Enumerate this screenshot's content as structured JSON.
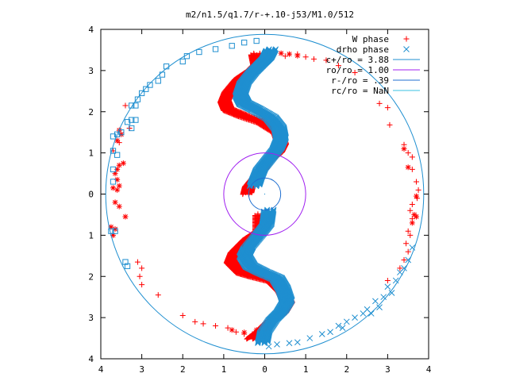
{
  "chart_data": {
    "type": "scatter",
    "title": "m2/n1.5/q1.7/r-+.10-j53/M1.0/512",
    "xlim": [
      -4,
      4
    ],
    "ylim": [
      -4,
      4
    ],
    "grid": false,
    "legend_position": "top-right",
    "x_tick_values": [
      -4,
      -3,
      -2,
      -1,
      0,
      1,
      2,
      3,
      4
    ],
    "x_tick_labels": [
      "4",
      "3",
      "2",
      "1",
      "0",
      "1",
      "2",
      "3",
      "4"
    ],
    "y_tick_values": [
      4,
      3,
      2,
      1,
      0,
      -1,
      -2,
      -3,
      -4
    ],
    "y_tick_labels": [
      "4",
      "3",
      "2",
      "1",
      "0",
      "1",
      "2",
      "3",
      "4"
    ],
    "series": [
      {
        "name": "W phase",
        "kind": "points",
        "marker": "plus",
        "color": "#ff0000",
        "points": [
          [
            0.2,
            3.48
          ],
          [
            0.5,
            3.35
          ],
          [
            0.8,
            3.4
          ],
          [
            1.0,
            3.33
          ],
          [
            1.2,
            3.28
          ],
          [
            1.5,
            3.25
          ],
          [
            1.8,
            3.12
          ],
          [
            2.2,
            2.95
          ],
          [
            2.8,
            2.2
          ],
          [
            3.0,
            2.1
          ],
          [
            3.05,
            1.68
          ],
          [
            3.4,
            1.2
          ],
          [
            3.5,
            1.0
          ],
          [
            3.6,
            0.9
          ],
          [
            3.6,
            0.6
          ],
          [
            3.7,
            0.3
          ],
          [
            3.75,
            0.1
          ],
          [
            3.72,
            -0.1
          ],
          [
            3.6,
            -0.25
          ],
          [
            3.55,
            -0.4
          ],
          [
            3.6,
            -0.6
          ],
          [
            3.5,
            -0.9
          ],
          [
            3.55,
            -1.0
          ],
          [
            3.45,
            -1.2
          ],
          [
            3.5,
            -1.4
          ],
          [
            3.4,
            -1.6
          ],
          [
            3.3,
            -1.8
          ],
          [
            3.0,
            -2.1
          ],
          [
            -3.1,
            -1.65
          ],
          [
            -3.0,
            -1.8
          ],
          [
            -3.05,
            -2.0
          ],
          [
            -3.0,
            -2.2
          ],
          [
            -2.6,
            -2.45
          ],
          [
            -2.0,
            -2.95
          ],
          [
            -1.7,
            -3.1
          ],
          [
            -1.5,
            -3.15
          ],
          [
            -1.2,
            -3.2
          ],
          [
            -0.9,
            -3.25
          ],
          [
            -0.7,
            -3.35
          ],
          [
            -0.5,
            -3.4
          ],
          [
            -0.3,
            -3.4
          ],
          [
            -3.4,
            2.15
          ],
          [
            -3.3,
            1.6
          ],
          [
            -3.55,
            1.25
          ],
          [
            -3.7,
            1.05
          ]
        ]
      },
      {
        "name": "",
        "kind": "points",
        "marker": "star",
        "color": "#ff0000",
        "points": [
          [
            -3.55,
            1.55
          ],
          [
            -3.5,
            1.45
          ],
          [
            -3.6,
            1.3
          ],
          [
            -3.45,
            0.75
          ],
          [
            -3.55,
            0.7
          ],
          [
            -3.6,
            0.6
          ],
          [
            -3.65,
            0.5
          ],
          [
            -3.6,
            0.35
          ],
          [
            -3.55,
            0.2
          ],
          [
            -3.7,
            0.15
          ],
          [
            -3.6,
            0.1
          ],
          [
            -3.65,
            -0.2
          ],
          [
            -3.55,
            -0.3
          ],
          [
            -3.75,
            -0.8
          ],
          [
            -3.65,
            -0.85
          ],
          [
            -3.7,
            -1.0
          ],
          [
            -3.4,
            -0.55
          ],
          [
            3.65,
            -0.5
          ],
          [
            3.7,
            -0.55
          ],
          [
            3.6,
            -0.7
          ],
          [
            3.7,
            -0.05
          ],
          [
            3.4,
            1.1
          ],
          [
            3.5,
            0.65
          ],
          [
            0.4,
            3.42
          ],
          [
            0.6,
            3.4
          ],
          [
            0.8,
            3.36
          ],
          [
            -0.2,
            -3.3
          ],
          [
            -0.5,
            -3.36
          ],
          [
            -0.8,
            -3.3
          ]
        ]
      },
      {
        "name": "",
        "kind": "band",
        "marker": "plus",
        "color": "#ff0000",
        "offset": [
          -0.18,
          -0.05
        ],
        "thickness": 0.22,
        "path": [
          [
            -0.05,
            3.45
          ],
          [
            0.0,
            3.2
          ],
          [
            -0.15,
            3.05
          ],
          [
            -0.45,
            2.85
          ],
          [
            -0.7,
            2.55
          ],
          [
            -0.8,
            2.3
          ],
          [
            -0.72,
            2.1
          ],
          [
            -0.35,
            1.95
          ],
          [
            0.1,
            1.8
          ],
          [
            0.5,
            1.55
          ],
          [
            0.6,
            1.25
          ],
          [
            0.5,
            1.05
          ],
          [
            0.25,
            0.85
          ],
          [
            0.05,
            0.55
          ],
          [
            -0.2,
            0.25
          ],
          [
            -0.25,
            0.05
          ],
          [
            0.05,
            -0.45
          ],
          [
            0.05,
            -0.85
          ],
          [
            -0.25,
            -1.05
          ],
          [
            -0.55,
            -1.35
          ],
          [
            -0.65,
            -1.6
          ],
          [
            -0.4,
            -1.85
          ],
          [
            -0.05,
            -1.95
          ],
          [
            0.35,
            -2.05
          ],
          [
            0.6,
            -2.3
          ],
          [
            0.75,
            -2.6
          ],
          [
            0.6,
            -2.85
          ],
          [
            0.3,
            -3.05
          ],
          [
            0.05,
            -3.3
          ],
          [
            -0.15,
            -3.45
          ]
        ]
      },
      {
        "name": "drho phase",
        "kind": "points",
        "marker": "cross",
        "color": "#1f8fd0",
        "points": [
          [
            3.5,
            -1.6
          ],
          [
            3.3,
            -1.9
          ],
          [
            3.2,
            -2.1
          ],
          [
            3.0,
            -2.25
          ],
          [
            2.9,
            -2.5
          ],
          [
            2.7,
            -2.6
          ],
          [
            2.5,
            -2.8
          ],
          [
            2.4,
            -2.9
          ],
          [
            2.2,
            -3.0
          ],
          [
            2.0,
            -3.1
          ],
          [
            1.8,
            -3.2
          ],
          [
            1.6,
            -3.35
          ],
          [
            1.4,
            -3.4
          ],
          [
            1.1,
            -3.5
          ],
          [
            0.8,
            -3.6
          ],
          [
            0.6,
            -3.62
          ],
          [
            0.3,
            -3.65
          ],
          [
            0.1,
            -3.7
          ],
          [
            2.8,
            -2.75
          ],
          [
            3.1,
            -2.4
          ],
          [
            2.6,
            -2.9
          ],
          [
            3.4,
            -1.8
          ],
          [
            1.9,
            -3.25
          ],
          [
            3.6,
            -1.3
          ]
        ]
      },
      {
        "name": "",
        "kind": "points",
        "marker": "square",
        "color": "#1f8fd0",
        "points": [
          [
            -0.2,
            3.72
          ],
          [
            -0.5,
            3.68
          ],
          [
            -0.8,
            3.6
          ],
          [
            -1.2,
            3.52
          ],
          [
            -1.6,
            3.45
          ],
          [
            -1.9,
            3.35
          ],
          [
            -2.0,
            3.22
          ],
          [
            -2.4,
            3.1
          ],
          [
            -2.5,
            2.9
          ],
          [
            -2.6,
            2.75
          ],
          [
            -2.8,
            2.65
          ],
          [
            -2.9,
            2.55
          ],
          [
            -3.0,
            2.45
          ],
          [
            -3.1,
            2.3
          ],
          [
            -3.15,
            2.15
          ],
          [
            -3.25,
            2.15
          ],
          [
            -3.15,
            1.8
          ],
          [
            -3.25,
            1.8
          ],
          [
            -3.35,
            1.75
          ],
          [
            -3.25,
            1.6
          ],
          [
            -3.5,
            1.5
          ],
          [
            -3.6,
            1.45
          ],
          [
            -3.7,
            1.4
          ],
          [
            -3.7,
            1.05
          ],
          [
            -3.6,
            0.95
          ],
          [
            -3.7,
            0.6
          ],
          [
            -3.7,
            0.3
          ],
          [
            -3.65,
            -0.9
          ],
          [
            -3.75,
            -0.9
          ],
          [
            -3.4,
            -1.65
          ],
          [
            -3.35,
            -1.75
          ]
        ]
      },
      {
        "name": "",
        "kind": "band",
        "marker": "cross",
        "color": "#1f8fd0",
        "offset": [
          0.0,
          0.0
        ],
        "thickness": 0.24,
        "path": [
          [
            0.15,
            3.5
          ],
          [
            0.05,
            3.3
          ],
          [
            -0.1,
            3.15
          ],
          [
            -0.3,
            2.95
          ],
          [
            -0.5,
            2.7
          ],
          [
            -0.6,
            2.4
          ],
          [
            -0.5,
            2.2
          ],
          [
            -0.2,
            2.05
          ],
          [
            0.15,
            1.85
          ],
          [
            0.35,
            1.6
          ],
          [
            0.4,
            1.35
          ],
          [
            0.3,
            1.1
          ],
          [
            0.1,
            0.85
          ],
          [
            -0.1,
            0.6
          ],
          [
            -0.2,
            0.35
          ],
          [
            -0.25,
            0.2
          ],
          [
            0.1,
            -0.4
          ],
          [
            0.05,
            -0.75
          ],
          [
            -0.15,
            -1.0
          ],
          [
            -0.4,
            -1.3
          ],
          [
            -0.5,
            -1.5
          ],
          [
            -0.35,
            -1.75
          ],
          [
            -0.05,
            -1.9
          ],
          [
            0.3,
            -2.05
          ],
          [
            0.45,
            -2.3
          ],
          [
            0.55,
            -2.6
          ],
          [
            0.4,
            -2.85
          ],
          [
            0.2,
            -3.05
          ],
          [
            0.0,
            -3.35
          ],
          [
            -0.05,
            -3.6
          ]
        ]
      },
      {
        "name": "c+/ro = 3.88",
        "kind": "circle",
        "radius": 3.88,
        "color": "#1f8fd0"
      },
      {
        "name": "ro/ro = 1.00",
        "kind": "circle",
        "radius": 1.0,
        "color": "#a020f0"
      },
      {
        "name": "r-/ro = .39",
        "kind": "circle",
        "radius": 0.39,
        "color": "#1f6fd0"
      },
      {
        "name": "rc/ro = NaN",
        "kind": "circle",
        "radius": null,
        "color": "#38c0e0"
      }
    ],
    "legend": [
      {
        "label": "W phase",
        "marker": "plus",
        "color": "#ff0000"
      },
      {
        "label": "drho phase",
        "marker": "cross",
        "color": "#1f8fd0"
      },
      {
        "label": "c+/ro = 3.88",
        "marker": "line",
        "color": "#1f8fd0"
      },
      {
        "label": "ro/ro = 1.00",
        "marker": "line",
        "color": "#a020f0"
      },
      {
        "label": "r-/ro = .39",
        "marker": "line",
        "color": "#1f6fd0"
      },
      {
        "label": "rc/ro = NaN",
        "marker": "line",
        "color": "#38c0e0"
      }
    ]
  }
}
